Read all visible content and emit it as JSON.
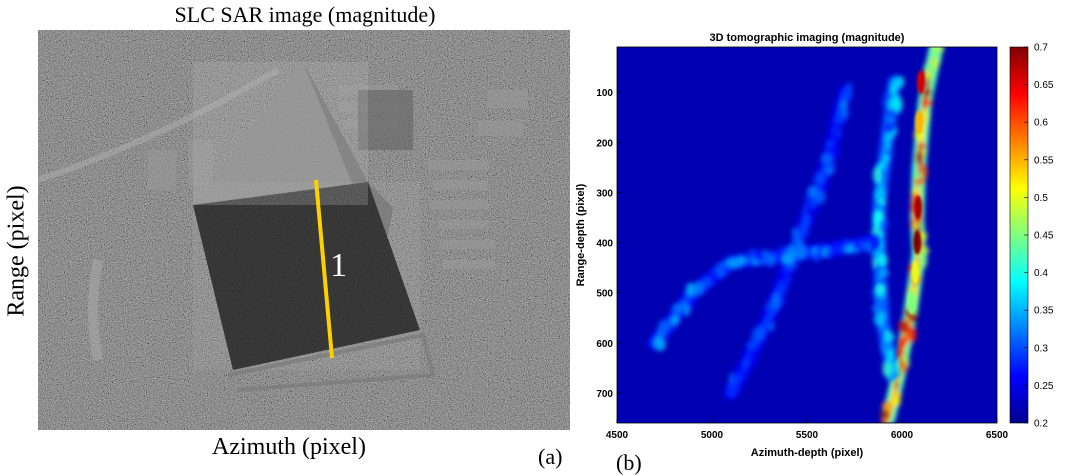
{
  "panel_a": {
    "title": "SLC SAR image (magnitude)",
    "ylabel": "Range (pixel)",
    "xlabel": "Azimuth (pixel)",
    "panel_label": "(a)",
    "line_label": "1",
    "line_color": "#ffd000"
  },
  "panel_b": {
    "panel_label": "(b)"
  },
  "chart_data": [
    {
      "type": "heatmap",
      "title": "3D tomographic imaging (magnitude)",
      "xlabel": "Azimuth-depth (pixel)",
      "ylabel": "Range-depth (pixel)",
      "xlim": [
        4500,
        6500
      ],
      "ylim": [
        10,
        760
      ],
      "y_inverted": true,
      "xticks": [
        4500,
        5000,
        5500,
        6000,
        6500
      ],
      "yticks": [
        100,
        200,
        300,
        400,
        500,
        600,
        700
      ],
      "colorbar": {
        "range": [
          0.2,
          0.7
        ],
        "ticks": [
          0.2,
          0.25,
          0.3,
          0.35,
          0.4,
          0.45,
          0.5,
          0.55,
          0.6,
          0.65,
          0.7
        ],
        "colormap": "jet"
      },
      "background_value": 0.22,
      "features": [
        {
          "name": "main bright ridge",
          "points": [
            [
              6180,
              10
            ],
            [
              6120,
              120
            ],
            [
              6090,
              250
            ],
            [
              6080,
              350
            ],
            [
              6090,
              420
            ],
            [
              6040,
              550
            ],
            [
              5990,
              650
            ],
            [
              5930,
              750
            ]
          ],
          "peak": 0.7
        },
        {
          "name": "secondary arc",
          "points": [
            [
              5960,
              80
            ],
            [
              5920,
              200
            ],
            [
              5880,
              320
            ],
            [
              5880,
              430
            ],
            [
              5900,
              560
            ],
            [
              5950,
              660
            ]
          ],
          "peak": 0.42
        },
        {
          "name": "upper-left streak",
          "points": [
            [
              5700,
              100
            ],
            [
              5600,
              250
            ],
            [
              5500,
              350
            ],
            [
              5400,
              450
            ],
            [
              5300,
              550
            ],
            [
              5100,
              700
            ]
          ],
          "peak": 0.33
        },
        {
          "name": "lower-left diagonal",
          "points": [
            [
              4700,
              600
            ],
            [
              4900,
              500
            ],
            [
              5100,
              440
            ],
            [
              5300,
              430
            ],
            [
              5500,
              420
            ],
            [
              5700,
              410
            ],
            [
              5850,
              400
            ]
          ],
          "peak": 0.36
        }
      ]
    }
  ]
}
